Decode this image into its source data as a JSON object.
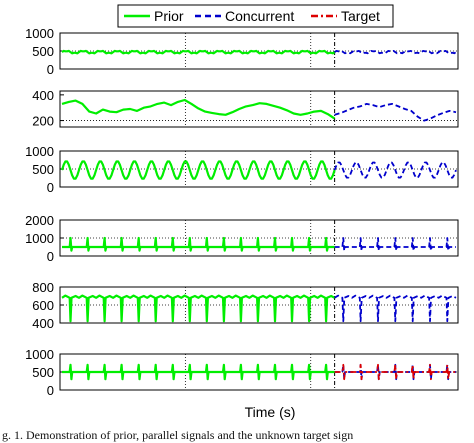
{
  "figure": {
    "xlabel": "Time (s)",
    "caption": "g. 1. Demonstration of prior, parallel signals and the unknown target sign"
  },
  "legend": {
    "position": "top-center",
    "entries": [
      {
        "label": "Prior",
        "color": "#00ee00",
        "style": "solid"
      },
      {
        "label": "Concurrent",
        "color": "#0000cc",
        "style": "dashed"
      },
      {
        "label": "Target",
        "color": "#dd0000",
        "style": "dash-dot"
      }
    ]
  },
  "chart_data": [
    {
      "type": "line",
      "yticks": [
        "0",
        "500",
        "1000"
      ],
      "ylim": [
        0,
        1000
      ],
      "reference_level": 500,
      "split_fraction": 0.69,
      "series": [
        {
          "name": "Prior",
          "color": "#00ee00",
          "pattern": "wavy",
          "base": 470,
          "amp": 80,
          "count": 16
        },
        {
          "name": "Concurrent",
          "color": "#0000cc",
          "pattern": "wavy",
          "base": 470,
          "amp": 80,
          "count": 7
        }
      ]
    },
    {
      "type": "line",
      "yticks": [
        "200",
        "400"
      ],
      "ylim": [
        150,
        430
      ],
      "reference_level": 200,
      "split_fraction": 0.69,
      "series": [
        {
          "name": "Prior",
          "color": "#00ee00",
          "pattern": "points",
          "values": [
            330,
            345,
            355,
            330,
            270,
            255,
            285,
            270,
            265,
            285,
            290,
            275,
            300,
            310,
            330,
            340,
            320,
            345,
            360,
            330,
            295,
            270,
            260,
            250,
            245,
            265,
            290,
            310,
            320,
            335,
            330,
            315,
            300,
            280,
            255,
            245,
            255,
            270,
            275,
            250,
            215
          ]
        },
        {
          "name": "Concurrent",
          "color": "#0000cc",
          "pattern": "points",
          "values": [
            245,
            260,
            280,
            300,
            310,
            330,
            320,
            305,
            320,
            330,
            310,
            290,
            275,
            230,
            200,
            215,
            240,
            260,
            275,
            265
          ]
        }
      ]
    },
    {
      "type": "line",
      "yticks": [
        "0",
        "500",
        "1000"
      ],
      "ylim": [
        0,
        1000
      ],
      "reference_level": 500,
      "split_fraction": 0.69,
      "series": [
        {
          "name": "Prior",
          "color": "#00ee00",
          "pattern": "wave",
          "base": 470,
          "amp": 250,
          "count": 16
        },
        {
          "name": "Concurrent",
          "color": "#0000cc",
          "pattern": "wave",
          "base": 470,
          "amp": 220,
          "count": 7
        }
      ]
    },
    {
      "type": "line",
      "yticks": [
        "0",
        "1000",
        "2000"
      ],
      "ylim": [
        0,
        2000
      ],
      "reference_level": 1000,
      "split_fraction": 0.69,
      "series": [
        {
          "name": "Prior",
          "color": "#00ee00",
          "pattern": "spikes",
          "base": 500,
          "peak": 1000,
          "trough": 300,
          "count": 16
        },
        {
          "name": "Concurrent",
          "color": "#0000cc",
          "pattern": "spikes",
          "base": 500,
          "peak": 1000,
          "trough": 300,
          "count": 7
        }
      ]
    },
    {
      "type": "line",
      "yticks": [
        "400",
        "600",
        "800"
      ],
      "ylim": [
        400,
        800
      ],
      "reference_level": 600,
      "split_fraction": 0.69,
      "series": [
        {
          "name": "Prior",
          "color": "#00ee00",
          "pattern": "dips",
          "base": 680,
          "trough": 420,
          "count": 16
        },
        {
          "name": "Concurrent",
          "color": "#0000cc",
          "pattern": "dips",
          "base": 680,
          "trough": 420,
          "count": 7
        }
      ]
    },
    {
      "type": "line",
      "yticks": [
        "0",
        "500",
        "1000"
      ],
      "ylim": [
        0,
        1000
      ],
      "reference_level": 500,
      "split_fraction": 0.69,
      "series": [
        {
          "name": "Prior",
          "color": "#00ee00",
          "pattern": "spikes",
          "base": 500,
          "peak": 700,
          "trough": 300,
          "count": 16
        },
        {
          "name": "Concurrent",
          "color": "#0000cc",
          "pattern": "spikes",
          "base": 500,
          "peak": 700,
          "trough": 300,
          "count": 7
        },
        {
          "name": "Target",
          "color": "#dd0000",
          "pattern": "spikes",
          "base": 500,
          "peak": 700,
          "trough": 300,
          "count": 7
        }
      ]
    }
  ]
}
